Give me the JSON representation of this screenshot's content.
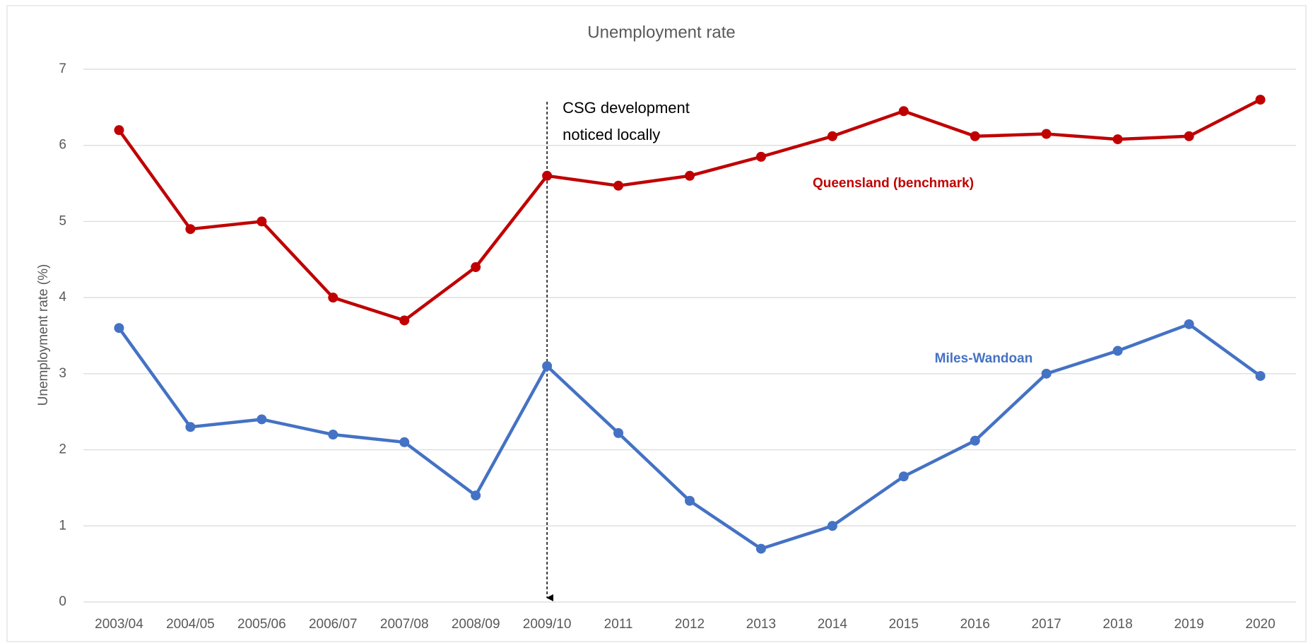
{
  "chart_data": {
    "type": "line",
    "title": "Unemployment rate",
    "y_label": "Unemployment rate (%)",
    "categories": [
      "2003/04",
      "2004/05",
      "2005/06",
      "2006/07",
      "2007/08",
      "2008/09",
      "2009/10",
      "2011",
      "2012",
      "2013",
      "2014",
      "2015",
      "2016",
      "2017",
      "2018",
      "2019",
      "2020"
    ],
    "series": [
      {
        "name": "Queensland (benchmark)",
        "color": "#c00000",
        "values": [
          6.2,
          4.9,
          5.0,
          4.0,
          3.7,
          4.4,
          5.6,
          5.47,
          5.6,
          5.85,
          6.12,
          6.45,
          6.12,
          6.15,
          6.08,
          6.12,
          6.6
        ]
      },
      {
        "name": "Miles-Wandoan",
        "color": "#4472c4",
        "values": [
          3.6,
          2.3,
          2.4,
          2.2,
          2.1,
          1.4,
          3.1,
          2.22,
          1.33,
          0.7,
          1.0,
          1.65,
          2.12,
          3.0,
          3.3,
          3.65,
          2.97
        ]
      }
    ],
    "annotation": {
      "lines": [
        "CSG development",
        "noticed locally"
      ],
      "category": "2009/10"
    },
    "ylim": [
      0,
      7
    ],
    "yticks": [
      0,
      1,
      2,
      3,
      4,
      5,
      6,
      7
    ],
    "grid": true
  }
}
